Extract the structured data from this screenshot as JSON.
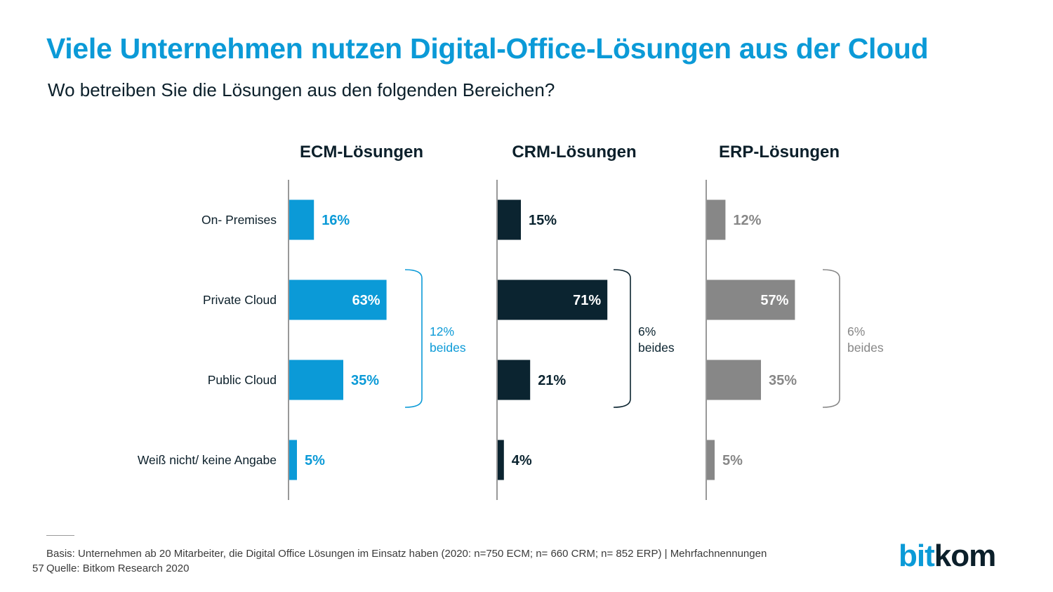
{
  "header": {
    "title": "Viele Unternehmen nutzen Digital-Office-Lösungen aus der Cloud",
    "subtitle": "Wo betreiben Sie die Lösungen aus den folgenden Bereichen?"
  },
  "chart_data": {
    "type": "bar",
    "orientation": "horizontal",
    "categories": [
      "On- Premises",
      "Private Cloud",
      "Public Cloud",
      "Weiß nicht/ keine Angabe"
    ],
    "unit": "%",
    "series": [
      {
        "name": "ECM-Lösungen",
        "values": [
          16,
          63,
          35,
          5
        ],
        "color": "#0b9ad7",
        "bracket_value": "12%",
        "bracket_label": "beides"
      },
      {
        "name": "CRM-Lösungen",
        "values": [
          15,
          71,
          21,
          4
        ],
        "color": "#0b2430",
        "bracket_value": "6%",
        "bracket_label": "beides"
      },
      {
        "name": "ERP-Lösungen",
        "values": [
          12,
          57,
          35,
          5
        ],
        "color": "#878787",
        "bracket_value": "6%",
        "bracket_label": "beides"
      }
    ]
  },
  "footer": {
    "basis": "Basis: Unternehmen ab 20 Mitarbeiter, die Digital Office Lösungen im Einsatz haben (2020: n=750 ECM; n= 660 CRM; n= 852 ERP) | Mehrfachnennungen",
    "source": "Quelle: Bitkom Research 2020",
    "page_number": "57"
  },
  "logo": {
    "part1": "bit",
    "part2": "kom"
  }
}
